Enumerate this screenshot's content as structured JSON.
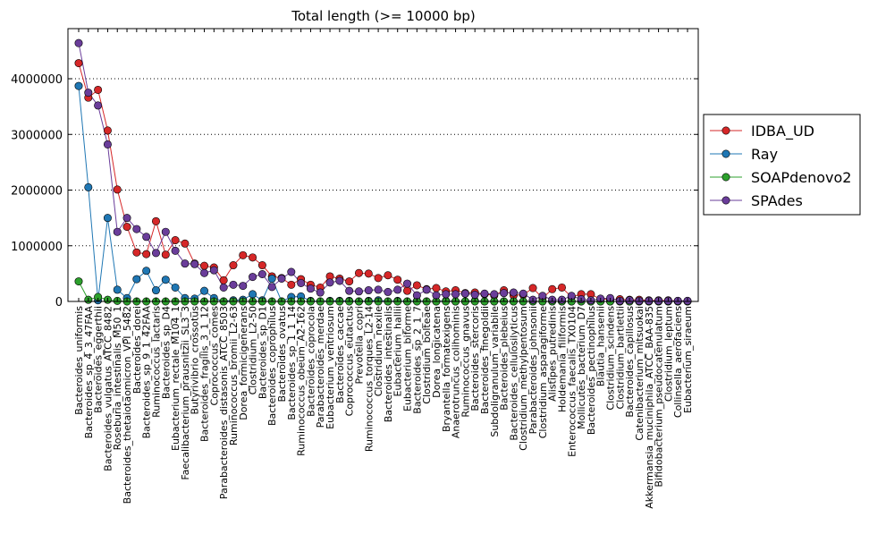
{
  "chart_data": {
    "type": "line",
    "title": "Total length (>= 10000 bp)",
    "xlabel": "",
    "ylabel": "",
    "ylim": [
      0,
      4900000
    ],
    "yticks": [
      0,
      1000000,
      2000000,
      3000000,
      4000000
    ],
    "ytick_labels": [
      "0",
      "1000000",
      "2000000",
      "3000000",
      "4000000"
    ],
    "grid": "y-dotted",
    "legend_position": "outside-right",
    "categories": [
      "Bacteroides_uniformis",
      "Bacteroides_sp_4_3_47FAA",
      "Bacteroides_eggerthii",
      "Bacteroides_vulgatus_ATCC_8482",
      "Roseburia_intestinalis_M50_1",
      "Bacteroides_thetaiotaomicron_VPI_5482",
      "Bacteroides_dorei",
      "Bacteroides_sp_9_1_42FAA",
      "Ruminococcus_lactaris",
      "Bacteroides_sp_D4",
      "Eubacterium_rectale_M104_1",
      "Faecalibacterium_prausnitzii_SL3_3",
      "Butyrivibrio_crossotus",
      "Bacteroides_fragilis_3_1_12",
      "Coprococcus_comes",
      "Parabacteroides_distasonis_ATCC_8503",
      "Ruminococcus_bromii_L2-63",
      "Dorea_formicigenerans",
      "Clostridium_L2-50",
      "Bacteroides_sp_D1",
      "Bacteroides_coprophilus",
      "Bacteroides_ovatus",
      "Bacteroides_sp_1_1_14",
      "Ruminococcus_obeum_A2-162",
      "Bacteroides_coprocola",
      "Parabacteroides_merdae",
      "Eubacterium_ventriosum",
      "Bacteroides_caccae",
      "Coprococcus_eutactus",
      "Prevotella_copri",
      "Ruminococcus_torques_L2-14",
      "Clostridium_nexile",
      "Bacteroides_intestinalis",
      "Eubacterium_hallii",
      "Eubacterium_biforme",
      "Bacteroides_sp_2_1_7",
      "Clostridium_bolteae",
      "Dorea_longicatena",
      "Bryantella_formatexigens",
      "Anaerotruncus_colihominis",
      "Ruminococcus_gnavus",
      "Bacteroides_stercoris",
      "Bacteroides_finegoldii",
      "Subdoligranulum_variabile",
      "Bacteroides_plebeius",
      "Bacteroides_cellulosilyticus",
      "Clostridium_methylpentosum",
      "Parabacteroides_johnsonii",
      "Clostridium_asparagiforme",
      "Alistipes_putredinis",
      "Holdemania_filiformis",
      "Enterococcus_faecalis_TX0104",
      "Mollicutes_bacterium_D7",
      "Bacteroides_pectinophilus",
      "Blautia_hansenii",
      "Clostridium_scindens",
      "Clostridium_bartlettii",
      "Bacteroides_capillosus",
      "Catenibacterium_mitsuokai",
      "Akkermansia_muciniphila_ATCC_BAA-835",
      "Bifidobacterium_pseudocatenulatum",
      "Clostridium_leptum",
      "Collinsella_aerofaciens",
      "Eubacterium_siraeum"
    ],
    "series": [
      {
        "name": "IDBA_UD",
        "color": "#d62728",
        "values": [
          4280000,
          3660000,
          3800000,
          3070000,
          2010000,
          1340000,
          880000,
          850000,
          1440000,
          840000,
          1100000,
          1040000,
          680000,
          640000,
          610000,
          380000,
          650000,
          830000,
          790000,
          650000,
          450000,
          420000,
          300000,
          400000,
          300000,
          250000,
          450000,
          410000,
          360000,
          510000,
          500000,
          420000,
          470000,
          390000,
          190000,
          290000,
          220000,
          240000,
          180000,
          200000,
          150000,
          160000,
          130000,
          110000,
          200000,
          110000,
          120000,
          240000,
          60000,
          220000,
          250000,
          80000,
          130000,
          130000,
          40000,
          40000,
          40000,
          30000,
          30000,
          20000,
          20000,
          20000,
          10000,
          10000
        ]
      },
      {
        "name": "Ray",
        "color": "#1f77b4",
        "values": [
          3870000,
          2050000,
          20000,
          1500000,
          210000,
          60000,
          400000,
          550000,
          200000,
          390000,
          250000,
          60000,
          50000,
          190000,
          60000,
          0,
          20000,
          30000,
          130000,
          20000,
          410000,
          0,
          80000,
          90000,
          10000,
          0,
          10000,
          10000,
          10000,
          0,
          10000,
          20000,
          0,
          10000,
          0,
          10000,
          0,
          0,
          10000,
          0,
          0,
          10000,
          0,
          0,
          0,
          0,
          0,
          0,
          0,
          0,
          0,
          0,
          0,
          0,
          0,
          0,
          0,
          0,
          0,
          0,
          0,
          0,
          0,
          0
        ]
      },
      {
        "name": "SOAPdenovo2",
        "color": "#2ca02c",
        "values": [
          360000,
          30000,
          80000,
          30000,
          10000,
          0,
          0,
          0,
          0,
          0,
          0,
          0,
          0,
          0,
          0,
          0,
          0,
          0,
          0,
          0,
          0,
          0,
          0,
          0,
          0,
          0,
          0,
          0,
          0,
          0,
          0,
          0,
          0,
          0,
          0,
          0,
          0,
          0,
          0,
          0,
          0,
          0,
          0,
          0,
          0,
          0,
          0,
          0,
          0,
          0,
          0,
          0,
          0,
          0,
          0,
          0,
          0,
          0,
          0,
          0,
          0,
          0,
          0,
          0
        ]
      },
      {
        "name": "SPAdes",
        "color": "#6a3d9a",
        "values": [
          4640000,
          3750000,
          3520000,
          2820000,
          1250000,
          1500000,
          1300000,
          1160000,
          870000,
          1250000,
          910000,
          680000,
          670000,
          510000,
          560000,
          250000,
          300000,
          280000,
          440000,
          490000,
          260000,
          410000,
          530000,
          330000,
          230000,
          160000,
          340000,
          370000,
          190000,
          180000,
          200000,
          210000,
          170000,
          210000,
          320000,
          110000,
          210000,
          110000,
          130000,
          130000,
          140000,
          120000,
          140000,
          130000,
          150000,
          160000,
          140000,
          30000,
          100000,
          30000,
          30000,
          100000,
          40000,
          20000,
          50000,
          60000,
          10000,
          20000,
          10000,
          10000,
          10000,
          10000,
          10000,
          10000
        ]
      }
    ]
  }
}
